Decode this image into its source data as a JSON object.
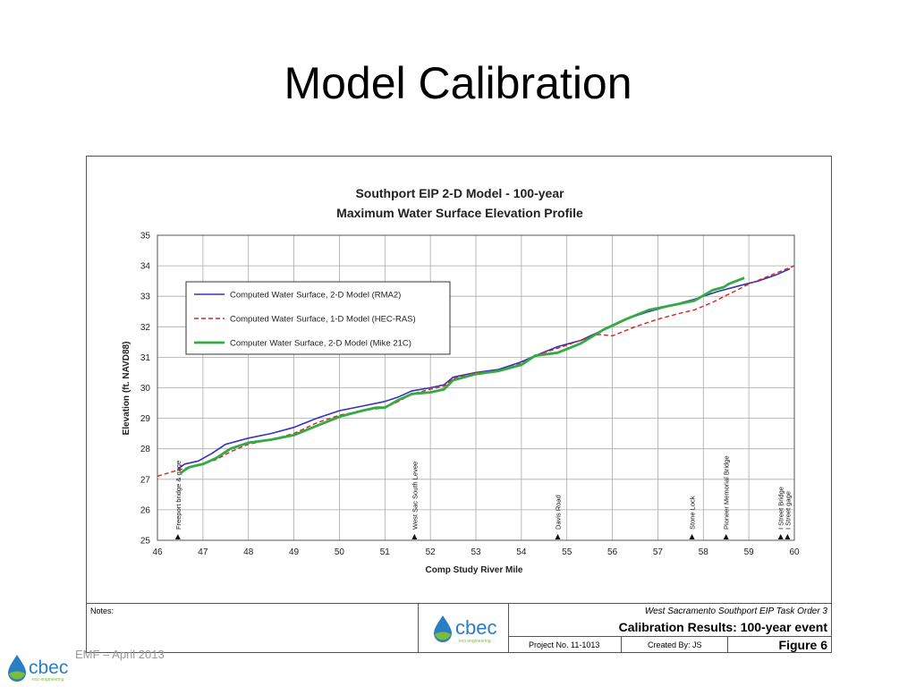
{
  "slide": {
    "title": "Model Calibration",
    "footer_text": "EMF – April 2013"
  },
  "title_block": {
    "notes_label": "Notes:",
    "project_line": "West Sacramento Southport EIP Task Order 3",
    "calibration_title": "Calibration Results: 100-year event",
    "project_no": "Project No. 11-1013",
    "created_by": "Created By: JS",
    "figure": "Figure 6",
    "logo_text": "cbec",
    "logo_subtext": "eco engineering"
  },
  "footer_logo": {
    "text": "cbec",
    "subtext": "eco engineering"
  },
  "colors": {
    "rma2": "#3333bb",
    "hecras": "#dd2222",
    "mike21c": "#33aa44",
    "drop": "#2a7fc4",
    "grid": "#aaaaaa"
  },
  "chart_data": {
    "type": "line",
    "title": "Southport EIP 2-D Model - 100-year",
    "subtitle": "Maximum Water Surface Elevation Profile",
    "xlabel": "Comp Study River Mile",
    "ylabel": "Elevation (ft. NAVD88)",
    "xlim": [
      46,
      60
    ],
    "ylim": [
      25,
      35
    ],
    "xticks": [
      46,
      47,
      48,
      49,
      50,
      51,
      52,
      53,
      54,
      55,
      56,
      57,
      58,
      59,
      60
    ],
    "yticks": [
      25,
      26,
      27,
      28,
      29,
      30,
      31,
      32,
      33,
      34,
      35
    ],
    "grid": true,
    "legend_position": "upper-left",
    "series": [
      {
        "name": "Computed Water Surface, 2-D Model (RMA2)",
        "style": "solid",
        "x": [
          46.45,
          46.6,
          46.9,
          47.2,
          47.5,
          48.0,
          48.5,
          49.0,
          49.5,
          50.0,
          50.5,
          51.0,
          51.3,
          51.6,
          52.0,
          52.3,
          52.5,
          53.0,
          53.5,
          54.0,
          54.3,
          54.8,
          55.3,
          55.8,
          56.3,
          56.8,
          57.3,
          57.8,
          58.3,
          58.8,
          59.2,
          59.6,
          59.9
        ],
        "y": [
          27.35,
          27.5,
          27.6,
          27.85,
          28.15,
          28.35,
          28.5,
          28.7,
          29.0,
          29.25,
          29.4,
          29.55,
          29.7,
          29.9,
          30.0,
          30.1,
          30.35,
          30.5,
          30.6,
          30.85,
          31.05,
          31.35,
          31.55,
          31.9,
          32.25,
          32.5,
          32.7,
          32.9,
          33.15,
          33.35,
          33.5,
          33.7,
          33.9
        ]
      },
      {
        "name": "Computed Water Surface, 1-D Model (HEC-RAS)",
        "style": "dashed",
        "x": [
          46.0,
          46.45,
          46.7,
          47.0,
          47.3,
          47.6,
          48.0,
          48.5,
          49.0,
          49.5,
          50.0,
          50.5,
          51.0,
          51.3,
          51.6,
          52.0,
          52.3,
          52.5,
          53.0,
          53.5,
          54.0,
          54.3,
          54.8,
          55.3,
          55.7,
          56.0,
          56.5,
          57.0,
          57.5,
          57.8,
          58.2,
          58.6,
          59.0,
          59.5,
          60.0
        ],
        "y": [
          27.1,
          27.3,
          27.4,
          27.5,
          27.65,
          27.9,
          28.15,
          28.3,
          28.5,
          28.85,
          29.1,
          29.25,
          29.35,
          29.55,
          29.8,
          29.95,
          30.05,
          30.3,
          30.5,
          30.55,
          30.8,
          31.05,
          31.3,
          31.55,
          31.75,
          31.7,
          32.0,
          32.25,
          32.45,
          32.55,
          32.8,
          33.1,
          33.4,
          33.7,
          34.0
        ]
      },
      {
        "name": "Computer Water Surface, 2-D Model (Mike 21C)",
        "style": "solid",
        "x": [
          46.5,
          46.7,
          47.0,
          47.3,
          47.6,
          48.0,
          48.5,
          49.0,
          49.5,
          50.0,
          50.5,
          50.8,
          51.0,
          51.3,
          51.6,
          52.0,
          52.3,
          52.5,
          53.0,
          53.5,
          54.0,
          54.3,
          54.8,
          55.3,
          55.8,
          56.3,
          56.8,
          57.3,
          57.8,
          58.2,
          58.45,
          58.55,
          58.9
        ],
        "y": [
          27.2,
          27.4,
          27.5,
          27.7,
          28.0,
          28.2,
          28.3,
          28.45,
          28.75,
          29.05,
          29.25,
          29.35,
          29.35,
          29.6,
          29.8,
          29.85,
          29.95,
          30.25,
          30.45,
          30.55,
          30.75,
          31.05,
          31.15,
          31.45,
          31.9,
          32.25,
          32.55,
          32.7,
          32.85,
          33.2,
          33.3,
          33.4,
          33.6
        ]
      }
    ],
    "annotations": [
      {
        "label": "Freeport bridge & gage",
        "x": 46.45
      },
      {
        "label": "West Sac South Levee",
        "x": 51.65
      },
      {
        "label": "Davis Road",
        "x": 54.8
      },
      {
        "label": "Stone Lock",
        "x": 57.75
      },
      {
        "label": "Pioneer Memorial Bridge",
        "x": 58.5
      },
      {
        "label": "I Street Bridge",
        "x": 59.7
      },
      {
        "label": "I Street gage",
        "x": 59.85
      }
    ]
  }
}
